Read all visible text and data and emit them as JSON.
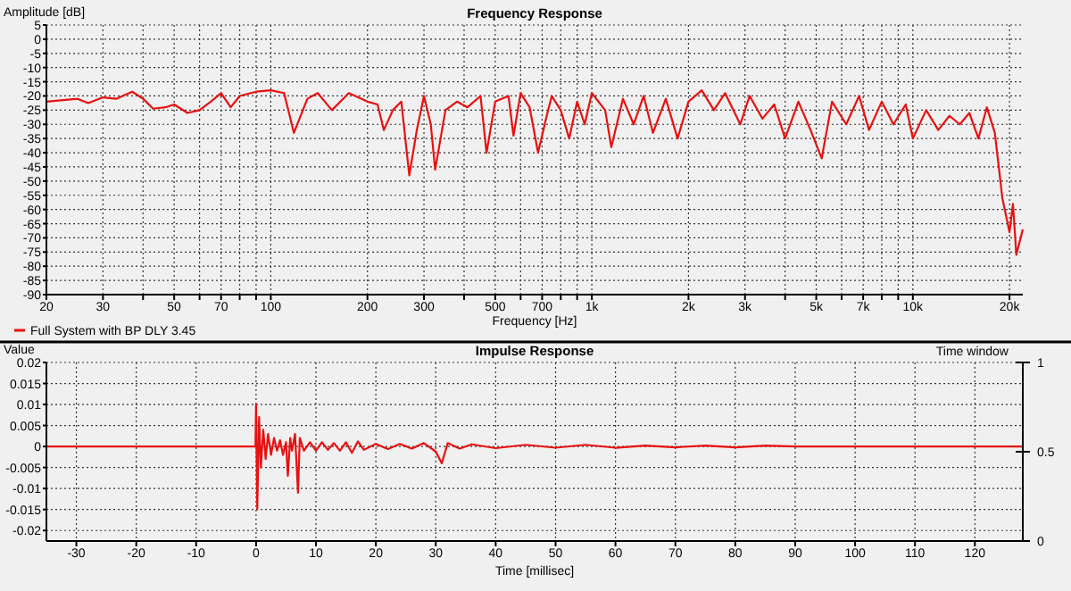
{
  "chart_data": [
    {
      "type": "line",
      "title": "Frequency Response",
      "xlabel": "Frequency [Hz]",
      "ylabel": "Amplitude [dB]",
      "log": "x",
      "grid": true,
      "legend": "bottom left",
      "xlim": [
        20,
        22000
      ],
      "ylim": [
        -90,
        5
      ],
      "xticks": [
        20,
        30,
        {
          "value": 40,
          "label": null
        },
        50,
        {
          "value": 60,
          "label": null
        },
        70,
        {
          "value": 80,
          "label": null
        },
        {
          "value": 90,
          "label": null
        },
        100,
        200,
        300,
        {
          "value": 400,
          "label": null
        },
        500,
        {
          "value": 600,
          "label": null
        },
        700,
        {
          "value": 800,
          "label": null
        },
        {
          "value": 900,
          "label": null
        },
        {
          "value": 1000,
          "label": "1k"
        },
        {
          "value": 2000,
          "label": "2k"
        },
        {
          "value": 3000,
          "label": "3k"
        },
        {
          "value": 4000,
          "label": null
        },
        {
          "value": 5000,
          "label": "5k"
        },
        {
          "value": 6000,
          "label": null
        },
        {
          "value": 7000,
          "label": "7k"
        },
        {
          "value": 8000,
          "label": null
        },
        {
          "value": 9000,
          "label": null
        },
        {
          "value": 10000,
          "label": "10k"
        },
        {
          "value": 20000,
          "label": "20k"
        }
      ],
      "yticks": [
        5,
        0,
        -5,
        -10,
        -15,
        -20,
        -25,
        -30,
        -35,
        -40,
        -45,
        -50,
        -55,
        -60,
        -65,
        -70,
        -75,
        -80,
        -85,
        -90
      ],
      "x": [
        20,
        25,
        27,
        30,
        33,
        37,
        40,
        43,
        47,
        50,
        55,
        60,
        65,
        70,
        75,
        80,
        90,
        100,
        110,
        118,
        130,
        140,
        155,
        175,
        200,
        215,
        225,
        240,
        255,
        270,
        285,
        300,
        315,
        325,
        350,
        380,
        410,
        450,
        470,
        500,
        550,
        570,
        600,
        640,
        680,
        720,
        750,
        800,
        850,
        900,
        950,
        1000,
        1100,
        1150,
        1250,
        1350,
        1450,
        1550,
        1700,
        1850,
        2000,
        2200,
        2400,
        2600,
        2900,
        3100,
        3400,
        3700,
        4000,
        4400,
        4800,
        5200,
        5600,
        6200,
        6800,
        7300,
        8000,
        8700,
        9500,
        10000,
        11000,
        12000,
        13000,
        14000,
        15000,
        16000,
        17000,
        18000,
        19000,
        20000,
        20500,
        21000,
        22000
      ],
      "series": [
        {
          "name": "Full System with BP DLY 3.45",
          "color": "#e81010",
          "values": [
            -22,
            -21,
            -22.5,
            -20.5,
            -21,
            -18.5,
            -21,
            -24.5,
            -24,
            -23,
            -26,
            -25,
            -22,
            -19,
            -24,
            -20,
            -18.5,
            -18,
            -19,
            -33,
            -21,
            -19,
            -25,
            -19,
            -22,
            -23,
            -32,
            -25,
            -22,
            -48,
            -32,
            -20,
            -30,
            -46,
            -25,
            -22,
            -24,
            -20,
            -40,
            -22,
            -20,
            -34,
            -19,
            -24,
            -40,
            -28,
            -20,
            -25,
            -35,
            -22,
            -30,
            -19,
            -25,
            -38,
            -21,
            -30,
            -20,
            -33,
            -21,
            -35,
            -22,
            -18,
            -25,
            -19,
            -30,
            -20,
            -28,
            -23,
            -35,
            -22,
            -32,
            -42,
            -22,
            -30,
            -20,
            -32,
            -22,
            -30,
            -23,
            -35,
            -25,
            -32,
            -27,
            -30,
            -26,
            -35,
            -24,
            -33,
            -56,
            -68,
            -58,
            -76,
            -67
          ]
        }
      ]
    },
    {
      "type": "line",
      "title": "Impulse Response",
      "xlabel": "Time [millisec]",
      "ylabel": "Value",
      "y2label": "Time window",
      "grid": true,
      "xlim": [
        -35,
        128
      ],
      "ylim": [
        -0.0225,
        0.02
      ],
      "xticks": [
        -30,
        -20,
        -10,
        0,
        10,
        20,
        30,
        40,
        50,
        60,
        70,
        80,
        90,
        100,
        110,
        120
      ],
      "yticks": [
        0.02,
        0.015,
        0.01,
        0.005,
        0,
        -0.005,
        -0.01,
        -0.015,
        -0.02
      ],
      "y2lim": [
        0,
        1
      ],
      "y2ticks": [
        0,
        0.5,
        1
      ],
      "x": [
        -35,
        -0.1,
        0,
        0.2,
        0.5,
        0.8,
        1.2,
        1.6,
        2,
        2.5,
        3,
        3.5,
        4,
        4.5,
        5,
        5.3,
        5.7,
        6,
        6.5,
        7,
        7.3,
        8,
        9,
        10,
        11,
        12,
        13,
        14,
        15,
        16,
        17,
        18,
        20,
        22,
        24,
        26,
        28,
        30,
        31,
        32,
        34,
        36,
        40,
        45,
        50,
        55,
        60,
        65,
        70,
        75,
        80,
        85,
        90,
        128
      ],
      "series": [
        {
          "color": "#e81010",
          "values": [
            0,
            0,
            0.01,
            -0.015,
            0.007,
            -0.005,
            0.004,
            -0.003,
            0.003,
            -0.002,
            0.002,
            -0.001,
            0.0015,
            -0.002,
            0.001,
            -0.007,
            0.002,
            -0.001,
            0.003,
            -0.011,
            0.002,
            -0.001,
            0.001,
            -0.001,
            0.001,
            -0.0008,
            0.0008,
            -0.001,
            0.001,
            -0.0015,
            0.0012,
            -0.0008,
            0.0006,
            -0.0006,
            0.0006,
            -0.0005,
            0.0008,
            -0.0012,
            -0.004,
            0.0008,
            -0.0005,
            0.0005,
            -0.0004,
            0.0004,
            -0.0003,
            0.0004,
            -0.0003,
            0.0002,
            -0.0002,
            0.0002,
            -0.0002,
            0.0002,
            0,
            0
          ]
        }
      ]
    }
  ]
}
